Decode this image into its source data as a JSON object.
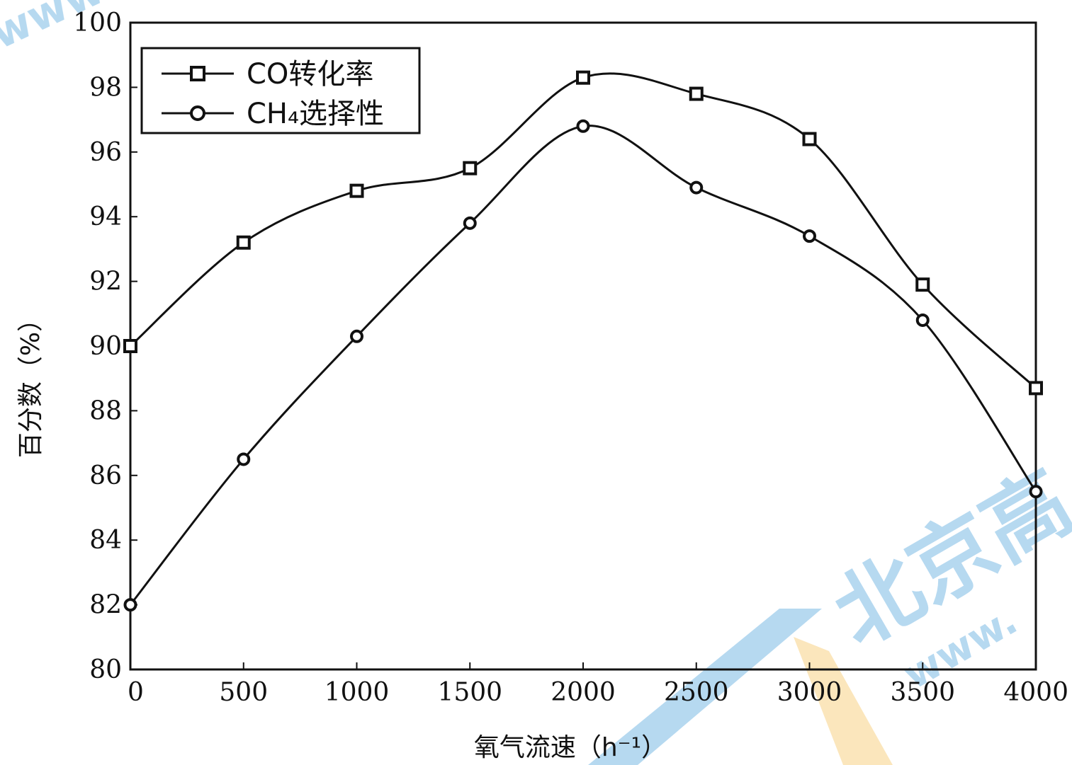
{
  "chart_data": {
    "type": "line",
    "title": "",
    "xlabel": "氧气流速（h⁻¹）",
    "ylabel": "百分数（%）",
    "xlim": [
      0,
      4000
    ],
    "ylim": [
      80,
      100
    ],
    "x_ticks": [
      "0",
      "500",
      "1000",
      "1500",
      "2000",
      "2500",
      "3000",
      "3500",
      "4000"
    ],
    "y_ticks": [
      "80",
      "82",
      "84",
      "86",
      "88",
      "90",
      "92",
      "94",
      "96",
      "98",
      "100"
    ],
    "x": [
      0,
      500,
      1000,
      1500,
      2000,
      2500,
      3000,
      3500,
      4000
    ],
    "series": [
      {
        "name": "CO转化率",
        "marker": "square",
        "values": [
          90.0,
          93.2,
          94.8,
          95.5,
          98.3,
          97.8,
          96.4,
          91.9,
          88.7
        ]
      },
      {
        "name": "CH₄选择性",
        "marker": "circle",
        "values": [
          82.0,
          86.5,
          90.3,
          93.8,
          96.8,
          94.9,
          93.4,
          90.8,
          85.5
        ]
      }
    ],
    "legend_position": "top-left",
    "grid": false
  },
  "watermark": {
    "text": "北京高",
    "url_fragment": "www.",
    "url_fragment_top": "www."
  },
  "colors": {
    "line": "#111111",
    "watermark_blue": "#a9d2ee",
    "watermark_orange": "#fbe2b0"
  }
}
